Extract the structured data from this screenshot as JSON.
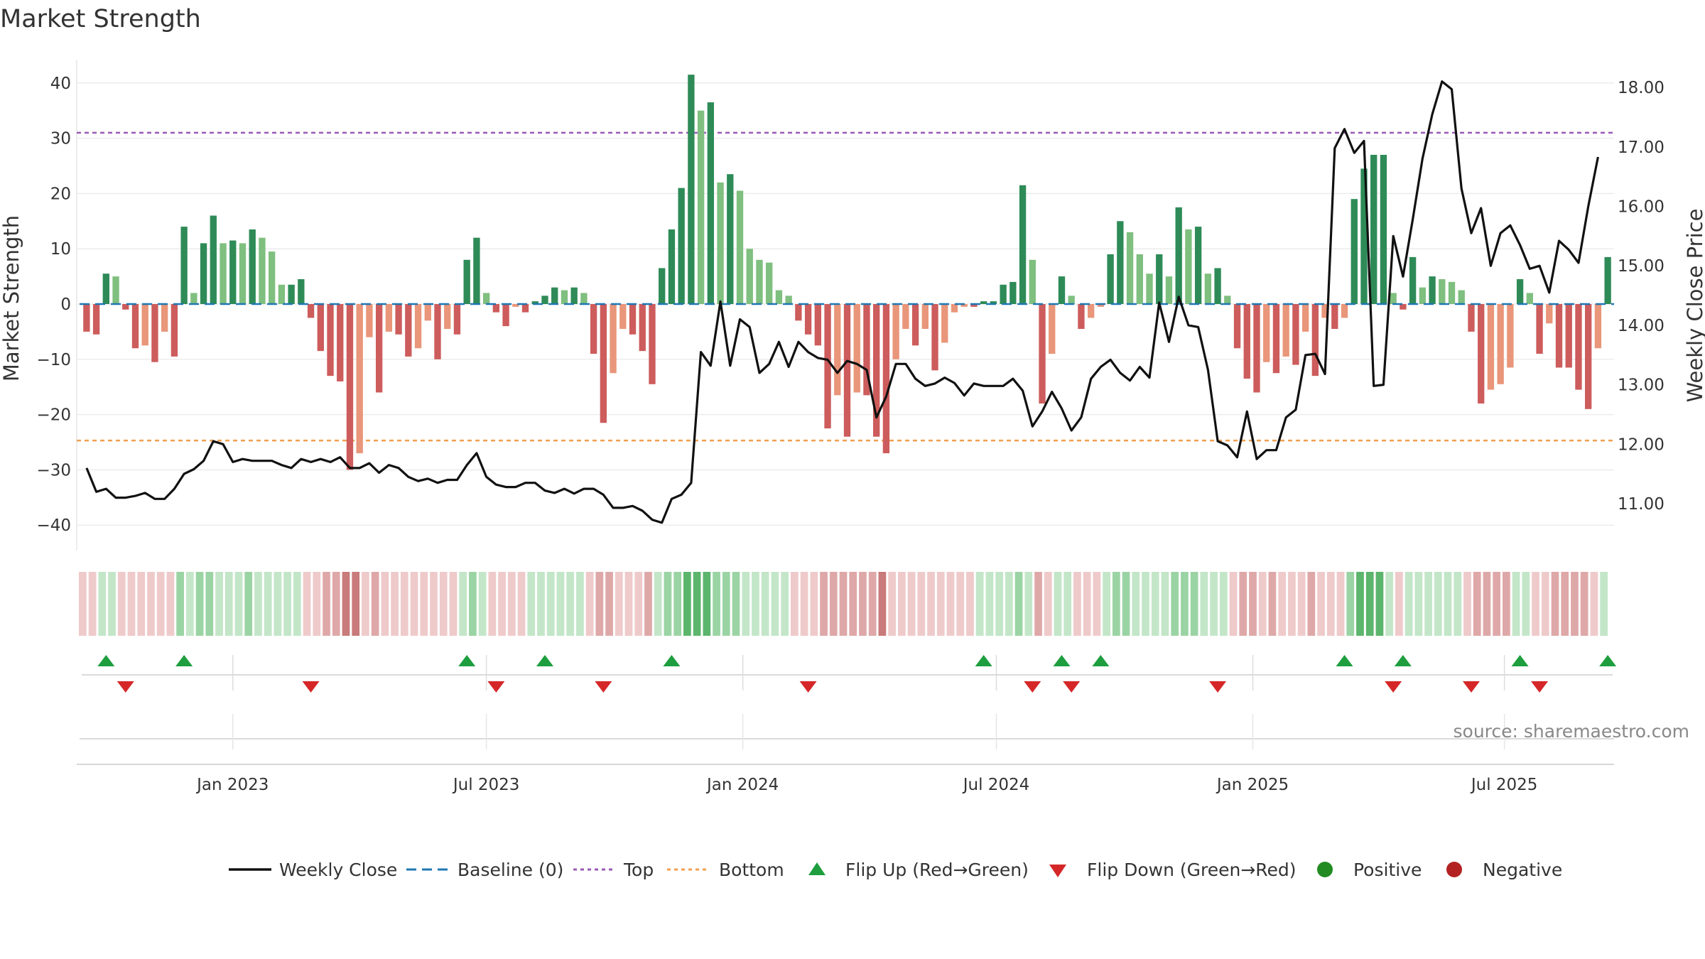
{
  "chart_data": {
    "type": "bar+line",
    "title": "Market Strength",
    "ylabel": "Market Strength",
    "y2label": "Weekly Close Price",
    "ylim": [
      -45,
      45
    ],
    "y2lim": [
      10.3,
      18.25
    ],
    "yticks": [
      40,
      30,
      20,
      10,
      0,
      -10,
      -20,
      -30,
      -40
    ],
    "yticklabels": [
      "40",
      "30",
      "20",
      "10",
      "0",
      "−10",
      "−20",
      "−30",
      "−40"
    ],
    "y2ticks": [
      18,
      17,
      16,
      15,
      14,
      13,
      12,
      11
    ],
    "y2ticklabels": [
      "18.00",
      "17.00",
      "16.00",
      "15.00",
      "14.00",
      "13.00",
      "12.00",
      "11.00"
    ],
    "top_threshold": 31,
    "bottom_threshold": -24.7,
    "baseline": 0,
    "xrange": [
      0,
      157
    ],
    "xticks": [
      {
        "week": 15,
        "label": "Jan 2023"
      },
      {
        "week": 41,
        "label": "Jul 2023"
      },
      {
        "week": 67.3,
        "label": "Jan 2024"
      },
      {
        "week": 93.3,
        "label": "Jul 2024"
      },
      {
        "week": 119.6,
        "label": "Jan 2025"
      },
      {
        "week": 145.4,
        "label": "Jul 2025"
      }
    ],
    "strength": [
      -5,
      -5.5,
      5.5,
      5,
      -1,
      -8,
      -7.5,
      -10.5,
      -5,
      -9.5,
      14,
      2,
      11,
      16,
      11,
      11.5,
      11,
      13.5,
      12,
      9.5,
      3.5,
      3.5,
      4.5,
      -2.5,
      -8.5,
      -13,
      -14,
      -30,
      -27,
      -6,
      -16,
      -5,
      -5.5,
      -9.5,
      -8,
      -3,
      -10,
      -4.5,
      -5.5,
      8,
      12,
      2,
      -1.5,
      -4,
      -0.5,
      -1.5,
      0.5,
      1.5,
      3,
      2.5,
      3,
      2,
      -9,
      -21.5,
      -12.5,
      -4.5,
      -5.5,
      -8.5,
      -14.5,
      6.5,
      13.5,
      21,
      41.5,
      35,
      36.5,
      22,
      23.5,
      20.5,
      10,
      8,
      7.5,
      2.5,
      1.5,
      -3,
      -5.5,
      -7.5,
      -22.5,
      -16.5,
      -24,
      -16,
      -16.5,
      -24,
      -27,
      -10,
      -4.5,
      -7.5,
      -4.5,
      -12,
      -7,
      -1.5,
      -0.5,
      -0.5,
      0.5,
      0.5,
      3.5,
      4,
      21.5,
      8,
      -18,
      -9,
      5,
      1.5,
      -4.5,
      -2.5,
      -0.5,
      9,
      15,
      13,
      9,
      5.5,
      9,
      5,
      17.5,
      13.5,
      14,
      5.5,
      6.5,
      1.5,
      -8,
      -13.5,
      -16,
      -10.5,
      -12.5,
      -9.5,
      -11,
      -5,
      -13,
      -2.5,
      -4.5,
      -2.5,
      19,
      24.5,
      27,
      27,
      2,
      -1,
      8.5,
      3,
      5,
      4.5,
      4,
      2.5,
      -5,
      -18,
      -15.5,
      -14.5,
      -11.5,
      4.5,
      2,
      -9,
      -3.5,
      -11.5,
      -11.5,
      -15.5,
      -19,
      -8,
      8.5
    ],
    "close": [
      11.6,
      11.2,
      11.25,
      11.1,
      11.1,
      11.13,
      11.18,
      11.08,
      11.08,
      11.25,
      11.5,
      11.58,
      11.72,
      12.05,
      12.0,
      11.7,
      11.75,
      11.72,
      11.72,
      11.72,
      11.65,
      11.6,
      11.75,
      11.7,
      11.75,
      11.7,
      11.78,
      11.6,
      11.6,
      11.68,
      11.52,
      11.65,
      11.6,
      11.45,
      11.38,
      11.42,
      11.35,
      11.4,
      11.4,
      11.65,
      11.85,
      11.45,
      11.32,
      11.28,
      11.28,
      11.35,
      11.35,
      11.22,
      11.18,
      11.25,
      11.17,
      11.25,
      11.25,
      11.15,
      10.93,
      10.93,
      10.96,
      10.88,
      10.73,
      10.68,
      11.08,
      11.15,
      11.35,
      13.55,
      13.32,
      14.4,
      13.32,
      14.1,
      13.97,
      13.2,
      13.35,
      13.72,
      13.3,
      13.72,
      13.55,
      13.45,
      13.42,
      13.2,
      13.4,
      13.35,
      13.25,
      12.45,
      12.8,
      13.35,
      13.35,
      13.1,
      12.98,
      13.02,
      13.12,
      13.03,
      12.82,
      13.02,
      12.98,
      12.98,
      12.98,
      13.1,
      12.9,
      12.3,
      12.55,
      12.88,
      12.6,
      12.23,
      12.45,
      13.1,
      13.3,
      13.42,
      13.2,
      13.07,
      13.3,
      13.12,
      14.38,
      13.72,
      14.48,
      14.0,
      13.97,
      13.25,
      12.05,
      11.98,
      11.78,
      12.55,
      11.75,
      11.9,
      11.9,
      12.45,
      12.58,
      13.5,
      13.52,
      13.18,
      16.98,
      17.3,
      16.9,
      17.1,
      12.98,
      13.0,
      15.5,
      14.82,
      15.78,
      16.8,
      17.55,
      18.1,
      17.97,
      16.3,
      15.55,
      15.97,
      15.0,
      15.55,
      15.68,
      15.35,
      14.95,
      15.0,
      14.55,
      15.42,
      15.27,
      15.05,
      16.0,
      16.83
    ],
    "regime_strip": [
      -1,
      -1,
      1,
      1,
      -1,
      -1,
      -1,
      -1,
      -1,
      -1,
      2,
      1,
      2,
      2,
      1,
      1,
      1,
      2,
      1,
      1,
      1,
      1,
      1,
      -1,
      -1,
      -2,
      -2,
      -3,
      -3,
      -1,
      -2,
      -1,
      -1,
      -1,
      -1,
      -1,
      -1,
      -1,
      -1,
      1,
      2,
      1,
      -1,
      -1,
      -1,
      -1,
      1,
      1,
      1,
      1,
      1,
      1,
      -1,
      -2,
      -2,
      -1,
      -1,
      -1,
      -2,
      1,
      2,
      2,
      3,
      3,
      3,
      2,
      2,
      2,
      1,
      1,
      1,
      1,
      1,
      -1,
      -1,
      -1,
      -2,
      -2,
      -2,
      -2,
      -2,
      -2,
      -3,
      -1,
      -1,
      -1,
      -1,
      -1,
      -1,
      -1,
      -1,
      -1,
      1,
      1,
      1,
      1,
      2,
      1,
      -2,
      -1,
      1,
      1,
      -1,
      -1,
      -1,
      1,
      2,
      2,
      1,
      1,
      1,
      1,
      2,
      2,
      2,
      1,
      1,
      1,
      -1,
      -2,
      -2,
      -1,
      -2,
      -1,
      -1,
      -1,
      -2,
      -1,
      -1,
      -1,
      2,
      3,
      3,
      3,
      1,
      -1,
      1,
      1,
      1,
      1,
      1,
      1,
      -1,
      -2,
      -2,
      -2,
      -2,
      1,
      1,
      -1,
      -1,
      -2,
      -2,
      -2,
      -2,
      -1,
      1
    ],
    "flip_up_weeks": [
      2,
      10,
      39,
      47,
      60,
      92,
      100,
      104,
      129,
      135,
      147,
      156
    ],
    "flip_down_weeks": [
      4,
      23,
      42,
      53,
      74,
      97,
      101,
      116,
      134,
      142,
      149
    ],
    "legend": [
      {
        "key": "weekly_close",
        "label": "Weekly Close"
      },
      {
        "key": "baseline",
        "label": "Baseline (0)"
      },
      {
        "key": "top",
        "label": "Top"
      },
      {
        "key": "bottom",
        "label": "Bottom"
      },
      {
        "key": "flip_up",
        "label": "Flip Up (Red→Green)"
      },
      {
        "key": "flip_down",
        "label": "Flip Down (Green→Red)"
      },
      {
        "key": "positive",
        "label": "Positive"
      },
      {
        "key": "negative",
        "label": "Negative"
      }
    ],
    "source": "source: sharemaestro.com"
  },
  "colors": {
    "pos_strong": "#2e8b57",
    "pos_light": "#7fbf7f",
    "neg_strong": "#cd5c5c",
    "neg_light": "#e9967a",
    "line": "#111111",
    "baseline": "#1f77b4",
    "top": "#9b59b6",
    "bottom": "#f0a050",
    "flip_up": "#1e9e3e",
    "flip_down": "#d62728",
    "positive_dot": "#228b22",
    "negative_dot": "#b22222"
  }
}
